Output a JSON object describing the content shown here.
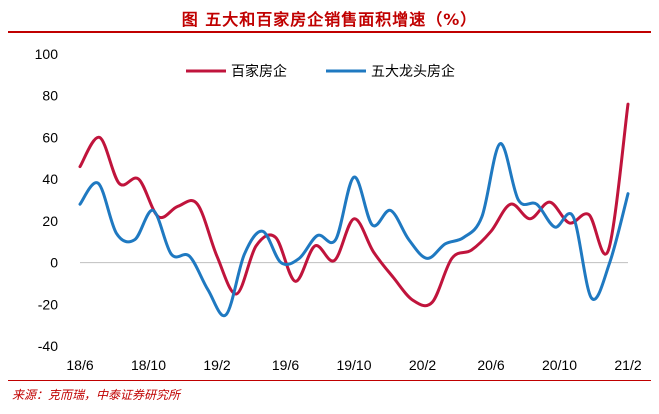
{
  "title": "图  五大和百家房企销售面积增速（%）",
  "source": "来源：克而瑞，中泰证券研究所",
  "chart_data": {
    "type": "line",
    "ylim": [
      -40,
      100
    ],
    "yticks": [
      "100",
      "80",
      "60",
      "40",
      "20",
      "0",
      "-20",
      "-40"
    ],
    "x_range": [
      0,
      32
    ],
    "xticks": [
      {
        "label": "18/6",
        "x": 0
      },
      {
        "label": "18/10",
        "x": 4
      },
      {
        "label": "19/2",
        "x": 8
      },
      {
        "label": "19/6",
        "x": 12
      },
      {
        "label": "19/10",
        "x": 16
      },
      {
        "label": "20/2",
        "x": 20
      },
      {
        "label": "20/6",
        "x": 24
      },
      {
        "label": "20/10",
        "x": 28
      },
      {
        "label": "21/2",
        "x": 32
      }
    ],
    "legend_position": "top",
    "series": [
      {
        "name": "百家房企",
        "color": "#c0143c",
        "values": [
          46,
          60,
          38,
          40,
          22,
          27,
          28,
          3,
          -15,
          8,
          12,
          -9,
          8,
          1,
          21,
          5,
          -7,
          -18,
          -19,
          2,
          6,
          15,
          28,
          21,
          29,
          19,
          23,
          6,
          76
        ]
      },
      {
        "name": "五大龙头房企",
        "color": "#1f79c1",
        "values": [
          28,
          38,
          14,
          11,
          25,
          4,
          3,
          -13,
          -25,
          4,
          15,
          0,
          2,
          13,
          11,
          41,
          18,
          25,
          11,
          2,
          9,
          12,
          22,
          57,
          30,
          28,
          17,
          22,
          -17,
          0,
          33
        ]
      }
    ]
  }
}
